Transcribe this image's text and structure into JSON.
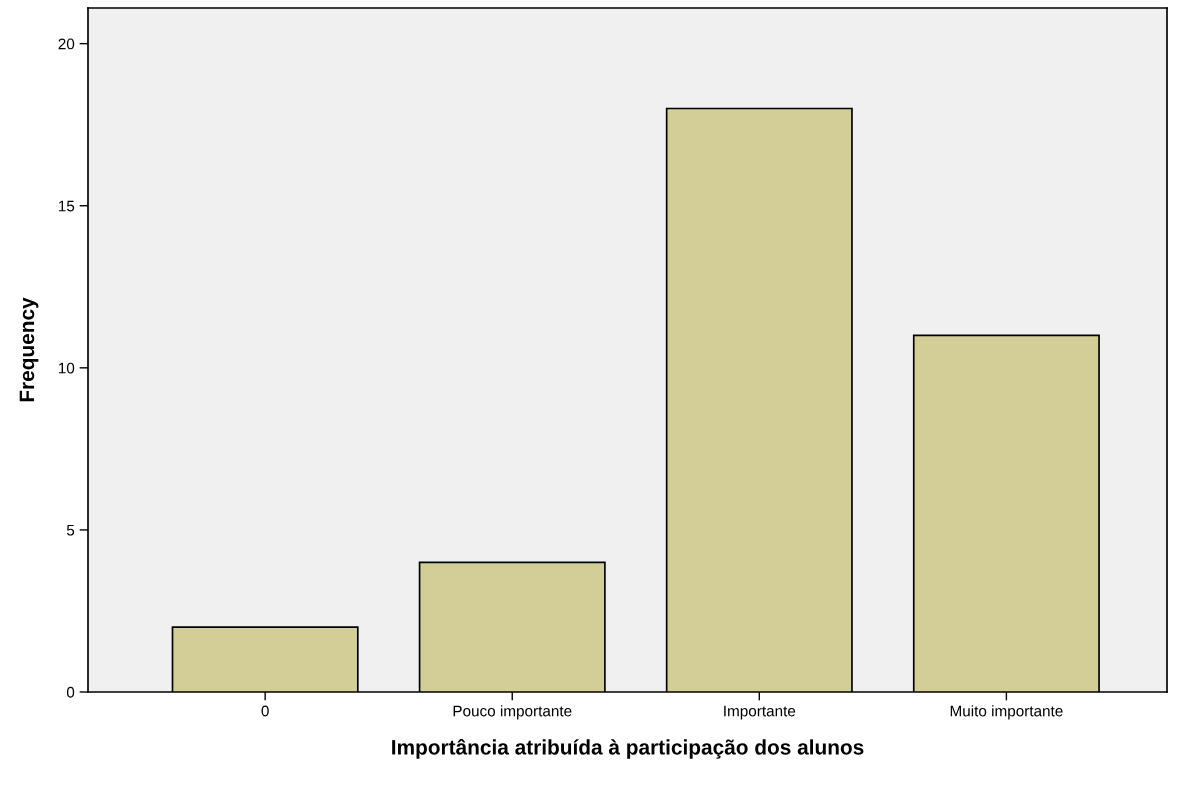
{
  "chart_data": {
    "type": "bar",
    "xlabel": "Importância atribuída à participação dos alunos",
    "ylabel": "Frequency",
    "categories": [
      "0",
      "Pouco importante",
      "Importante",
      "Muito importante"
    ],
    "values": [
      2,
      4,
      18,
      11
    ],
    "color": "#d3ce97",
    "ylim": [
      0,
      21.1
    ],
    "yticks": [
      0,
      5,
      10,
      15,
      20
    ],
    "grid": false
  }
}
